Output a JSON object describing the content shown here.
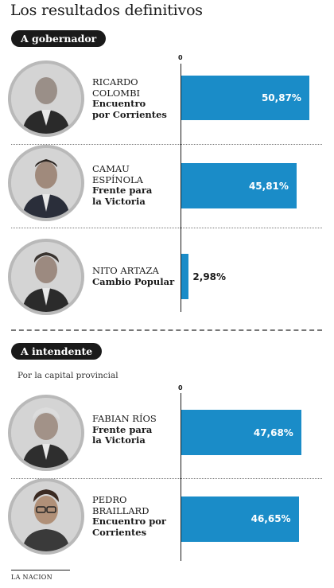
{
  "title": "Los resultados definitivos",
  "footer": "LA NACION",
  "chart_data": [
    {
      "type": "bar",
      "orientation": "horizontal",
      "heading": "A gobernador",
      "subtitle": "",
      "zero_label": "0",
      "xlim": [
        0,
        55
      ],
      "categories": [
        "RICARDO COLOMBI",
        "CAMAU ESPÍNOLA",
        "NITO ARTAZA"
      ],
      "rows": [
        {
          "name_lines": [
            "RICARDO",
            "COLOMBI"
          ],
          "party_lines": [
            "Encuentro",
            "por Corrientes"
          ],
          "value": 50.87,
          "label": "50,87%"
        },
        {
          "name_lines": [
            "CAMAU",
            "ESPÍNOLA"
          ],
          "party_lines": [
            "Frente para",
            "la Victoria"
          ],
          "value": 45.81,
          "label": "45,81%"
        },
        {
          "name_lines": [
            "NITO ARTAZA"
          ],
          "party_lines": [
            "Cambio Popular"
          ],
          "value": 2.98,
          "label": "2,98%"
        }
      ]
    },
    {
      "type": "bar",
      "orientation": "horizontal",
      "heading": "A intendente",
      "subtitle": "Por la capital provincial",
      "zero_label": "0",
      "xlim": [
        0,
        55
      ],
      "categories": [
        "FABIAN RÍOS",
        "PEDRO BRAILLARD"
      ],
      "rows": [
        {
          "name_lines": [
            "FABIAN RÍOS"
          ],
          "party_lines": [
            "Frente para",
            "la Victoria"
          ],
          "value": 47.68,
          "label": "47,68%"
        },
        {
          "name_lines": [
            "PEDRO",
            "BRAILLARD"
          ],
          "party_lines": [
            "Encuentro por",
            "Corrientes"
          ],
          "value": 46.65,
          "label": "46,65%"
        }
      ]
    }
  ],
  "colors": {
    "bar": "#1a8cc8",
    "pill": "#1a1a1a"
  }
}
